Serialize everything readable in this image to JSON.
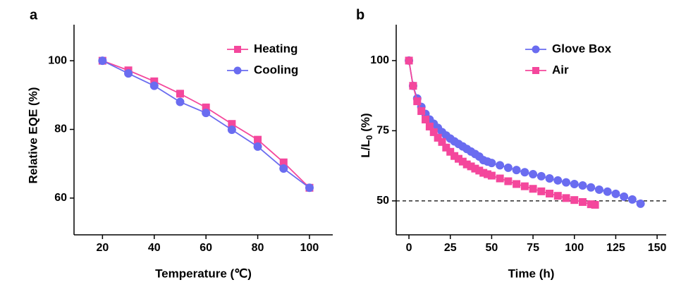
{
  "chart_data": [
    {
      "type": "line",
      "panel_label": "a",
      "xlabel": "Temperature (℃)",
      "ylabel": "Relative EQE (%)",
      "x": [
        20,
        30,
        40,
        50,
        60,
        70,
        80,
        90,
        100
      ],
      "xlim": [
        9,
        109
      ],
      "xticks": [
        20,
        40,
        60,
        80,
        100
      ],
      "ylim": [
        49.3,
        110.5
      ],
      "yticks": [
        60,
        80,
        100
      ],
      "legend": "upper right",
      "series": [
        {
          "name": "Heating",
          "color": "#f4479c",
          "marker": "square",
          "values": [
            100,
            97.2,
            94,
            90.4,
            86.4,
            81.6,
            77,
            70.4,
            63
          ]
        },
        {
          "name": "Cooling",
          "color": "#6a6cf0",
          "marker": "circle",
          "values": [
            100,
            96.3,
            92.7,
            88,
            84.8,
            79.9,
            75,
            68.6,
            63
          ]
        }
      ]
    },
    {
      "type": "line",
      "panel_label": "b",
      "xlabel": "Time (h)",
      "ylabel": [
        "L/L",
        "0",
        " (%)"
      ],
      "xlim": [
        -7.7,
        155.5
      ],
      "xticks": [
        0,
        25,
        50,
        75,
        100,
        125,
        150
      ],
      "ylim": [
        37.9,
        112.8
      ],
      "yticks": [
        50,
        75,
        100
      ],
      "hline": 50,
      "legend": "upper right",
      "series": [
        {
          "name": "Glove Box",
          "color": "#6a6cf0",
          "marker": "circle",
          "x": [
            0,
            2.5,
            5,
            7.5,
            10,
            12.5,
            15,
            17.5,
            20,
            22.5,
            25,
            27.5,
            30,
            32.5,
            35,
            37.5,
            40,
            42.5,
            45,
            47.5,
            50,
            55,
            60,
            65,
            70,
            75,
            80,
            85,
            90,
            95,
            100,
            105,
            110,
            115,
            120,
            125,
            130,
            135,
            140
          ],
          "values": [
            100,
            91,
            86.5,
            83.5,
            81,
            79,
            77.5,
            76,
            74.5,
            73.3,
            72.2,
            71.2,
            70.3,
            69.4,
            68.5,
            67.6,
            66.7,
            65.8,
            64.5,
            64,
            63.5,
            62.7,
            61.8,
            61,
            60.2,
            59.5,
            58.8,
            58,
            57.3,
            56.6,
            56,
            55.5,
            54.8,
            54,
            53.3,
            52.5,
            51.5,
            50.5,
            49
          ]
        },
        {
          "name": "Air",
          "color": "#f4479c",
          "marker": "square",
          "x": [
            0,
            2.5,
            5,
            7.5,
            10,
            12.5,
            15,
            17.5,
            20,
            22.5,
            25,
            27.5,
            30,
            32.5,
            35,
            37.5,
            40,
            42.5,
            45,
            47.5,
            50,
            55,
            60,
            65,
            70,
            75,
            80,
            85,
            90,
            95,
            100,
            105,
            110,
            112.5
          ],
          "values": [
            100,
            91,
            85.5,
            82,
            79,
            76.5,
            74.5,
            72.5,
            71,
            69,
            67.5,
            66,
            65,
            64,
            63,
            62.3,
            61.5,
            60.8,
            60,
            59.5,
            59,
            58,
            57,
            56,
            55.2,
            54.3,
            53.4,
            52.6,
            51.8,
            51,
            50.3,
            49.6,
            48.8,
            48.6
          ]
        }
      ]
    }
  ]
}
